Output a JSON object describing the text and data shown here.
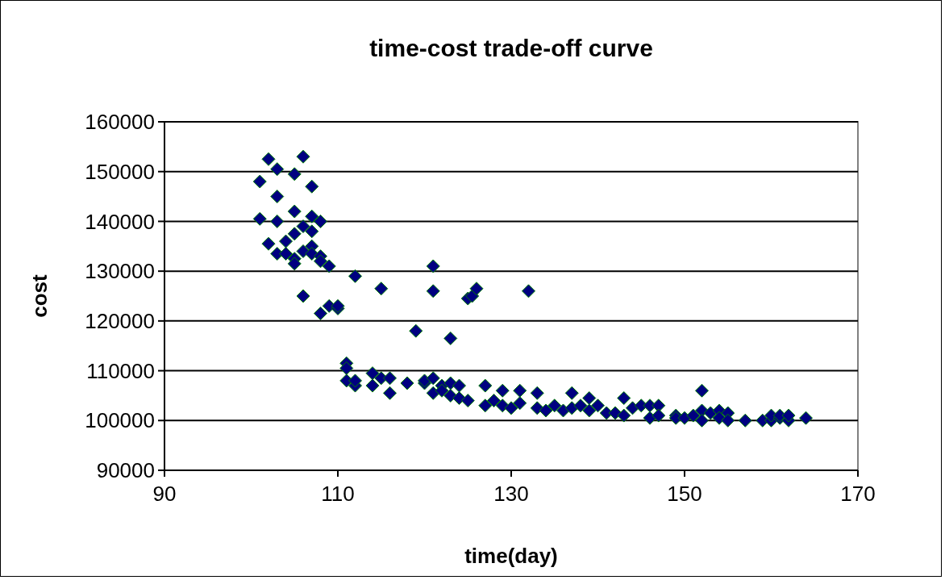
{
  "chart_data": {
    "type": "scatter",
    "title": "time-cost trade-off curve",
    "xlabel": "time(day)",
    "ylabel": "cost",
    "xlim": [
      90,
      170
    ],
    "xticks": [
      90,
      110,
      130,
      150,
      170
    ],
    "ylim": [
      90000,
      160000
    ],
    "yticks": [
      90000,
      100000,
      110000,
      120000,
      130000,
      140000,
      150000,
      160000
    ],
    "grid": "y",
    "marker": "diamond",
    "series": [
      {
        "color": "#000080",
        "x": [
          101,
          101,
          102,
          102,
          103,
          103,
          103,
          103,
          104,
          104,
          105,
          105,
          105,
          105,
          105,
          106,
          106,
          106,
          106,
          107,
          107,
          107,
          107,
          107,
          108,
          108,
          108,
          108,
          109,
          109,
          110,
          110,
          112,
          115,
          119,
          121,
          121,
          123,
          125,
          125.5,
          126,
          132,
          111,
          111,
          111,
          112,
          112,
          114,
          114,
          115,
          116,
          116,
          118,
          120,
          120,
          121,
          121,
          122,
          122,
          123,
          123,
          124,
          124,
          125,
          127,
          127,
          128,
          129,
          129,
          130,
          131,
          131,
          133,
          133,
          134,
          135,
          136,
          137,
          137,
          138,
          139,
          139,
          140,
          141,
          142,
          143,
          143,
          144,
          145,
          146,
          146,
          147,
          147,
          149,
          149,
          150,
          151,
          152,
          152,
          152,
          153,
          154,
          154,
          155,
          155,
          157,
          159,
          160,
          160,
          161,
          161,
          162,
          162,
          164
        ],
        "values": [
          148000,
          140500,
          152500,
          135500,
          150500,
          145000,
          140000,
          133500,
          133500,
          136000,
          149500,
          142000,
          137500,
          132500,
          131500,
          153000,
          139000,
          125000,
          134000,
          147000,
          141000,
          138000,
          135000,
          133500,
          140000,
          133000,
          121500,
          132000,
          131000,
          123000,
          122500,
          123000,
          129000,
          126500,
          118000,
          131000,
          126000,
          116500,
          124500,
          125000,
          126500,
          126000,
          111500,
          110500,
          108000,
          107000,
          108000,
          109500,
          107000,
          108500,
          108500,
          105500,
          107500,
          107500,
          108000,
          108500,
          105500,
          107000,
          106000,
          107500,
          105000,
          107000,
          104500,
          104000,
          107000,
          103000,
          104000,
          106000,
          103000,
          102500,
          106000,
          103500,
          105500,
          102500,
          102000,
          103000,
          102000,
          105500,
          102500,
          103000,
          104500,
          102000,
          103000,
          101500,
          101500,
          104500,
          101000,
          102500,
          103000,
          103000,
          100500,
          103000,
          101000,
          101000,
          100500,
          100500,
          101000,
          106000,
          102000,
          100000,
          101500,
          102000,
          100500,
          101500,
          100000,
          100000,
          100000,
          100000,
          101000,
          100500,
          101000,
          100000,
          101000,
          100500
        ]
      }
    ]
  }
}
